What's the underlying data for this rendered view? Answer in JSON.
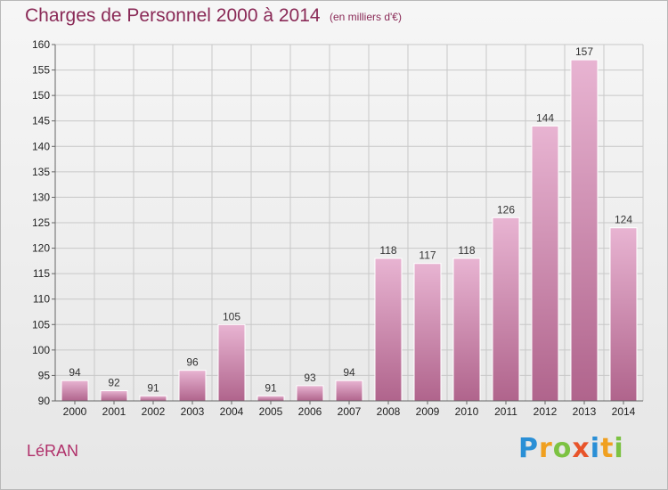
{
  "header": {
    "title": "Charges de Personnel 2000 à 2014",
    "subtitle": "(en milliers d'€)"
  },
  "footer": {
    "commune": "LéRAN",
    "logo": {
      "letters": [
        {
          "char": "P",
          "color": "#2a8fd6"
        },
        {
          "char": "r",
          "color": "#f0a020"
        },
        {
          "char": "o",
          "color": "#7cc242"
        },
        {
          "char": "x",
          "color": "#e8542a"
        },
        {
          "char": "i",
          "color": "#2a8fd6"
        },
        {
          "char": "t",
          "color": "#f0a020"
        },
        {
          "char": "i",
          "color": "#7cc242"
        }
      ]
    }
  },
  "colors": {
    "bar_light": "#e8b4d2",
    "bar_dark": "#b0648c",
    "grid": "#c8c8c8",
    "axis": "#666666"
  },
  "chart_data": {
    "type": "bar",
    "title": "Charges de Personnel 2000 à 2014",
    "subtitle": "(en milliers d'€)",
    "xlabel": "",
    "ylabel": "",
    "categories": [
      "2000",
      "2001",
      "2002",
      "2003",
      "2004",
      "2005",
      "2006",
      "2007",
      "2008",
      "2009",
      "2010",
      "2011",
      "2012",
      "2013",
      "2014"
    ],
    "values": [
      94,
      92,
      91,
      96,
      105,
      91,
      93,
      94,
      118,
      117,
      118,
      126,
      144,
      157,
      124
    ],
    "ylim": [
      90,
      160
    ],
    "yticks": [
      90,
      95,
      100,
      105,
      110,
      115,
      120,
      125,
      130,
      135,
      140,
      145,
      150,
      155,
      160
    ],
    "grid": true,
    "data_labels": true
  }
}
